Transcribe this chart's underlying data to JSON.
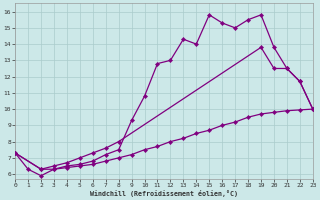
{
  "xlabel": "Windchill (Refroidissement éolien,°C)",
  "bg_color": "#cce8e8",
  "line_color": "#800080",
  "grid_color": "#aacccc",
  "line1_x": [
    0,
    1,
    2,
    3,
    4,
    5,
    6,
    7,
    8,
    9,
    10,
    11,
    12,
    13,
    14,
    15,
    16,
    17,
    18,
    19,
    20,
    21,
    22,
    23
  ],
  "line1_y": [
    7.3,
    6.3,
    5.9,
    6.3,
    6.5,
    6.6,
    6.8,
    7.2,
    7.5,
    9.3,
    10.8,
    12.8,
    13.0,
    14.3,
    14.0,
    15.8,
    15.3,
    15.0,
    15.5,
    15.8,
    13.8,
    12.5,
    11.7,
    10.0
  ],
  "line2_x": [
    0,
    2,
    3,
    4,
    5,
    6,
    7,
    8,
    19,
    20,
    21,
    22,
    23
  ],
  "line2_y": [
    7.3,
    6.3,
    6.5,
    6.7,
    7.0,
    7.3,
    7.6,
    8.0,
    13.8,
    12.5,
    12.5,
    11.7,
    10.0
  ],
  "line3_x": [
    0,
    2,
    3,
    4,
    5,
    6,
    7,
    8,
    9,
    10,
    11,
    12,
    13,
    14,
    15,
    16,
    17,
    18,
    19,
    20,
    21,
    22,
    23
  ],
  "line3_y": [
    7.3,
    6.3,
    6.3,
    6.4,
    6.5,
    6.6,
    6.8,
    7.0,
    7.2,
    7.5,
    7.7,
    8.0,
    8.2,
    8.5,
    8.7,
    9.0,
    9.2,
    9.5,
    9.7,
    9.8,
    9.9,
    9.95,
    10.0
  ],
  "xlim": [
    0,
    23
  ],
  "ylim": [
    5.7,
    16.5
  ],
  "yticks": [
    6,
    7,
    8,
    9,
    10,
    11,
    12,
    13,
    14,
    15,
    16
  ],
  "xticks": [
    0,
    1,
    2,
    3,
    4,
    5,
    6,
    7,
    8,
    9,
    10,
    11,
    12,
    13,
    14,
    15,
    16,
    17,
    18,
    19,
    20,
    21,
    22,
    23
  ]
}
